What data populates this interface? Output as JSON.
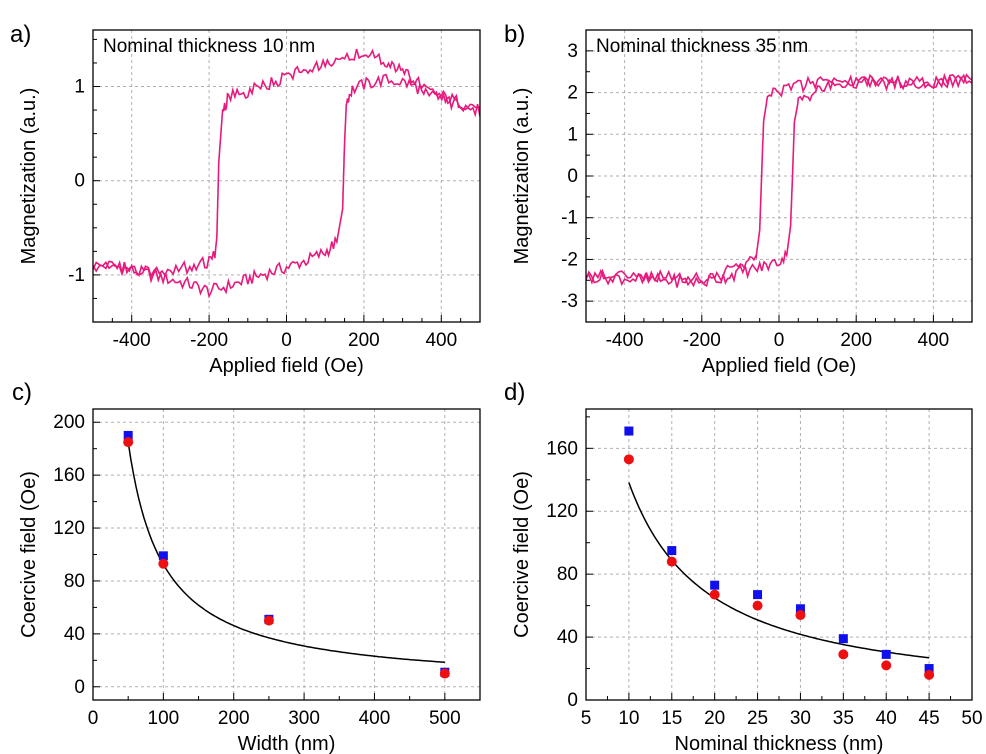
{
  "chart_data": [
    {
      "panel_label": "a)",
      "type": "line",
      "xlabel": "Applied field (Oe)",
      "ylabel": "Magnetization (a.u.)",
      "xlim": [
        -500,
        500
      ],
      "ylim": [
        -1.5,
        1.6
      ],
      "xticks": [
        -400,
        -200,
        0,
        200,
        400
      ],
      "yticks": [
        -1,
        0,
        1
      ],
      "grid": true,
      "annotation": "Nominal thickness 10 nm",
      "line_color": "#e8197c",
      "series": [
        {
          "name": "",
          "x": [
            500,
            420,
            350,
            300,
            250,
            200,
            150,
            100,
            50,
            0,
            -50,
            -100,
            -150,
            -165,
            -175,
            -180,
            -185,
            -200,
            -250,
            -300,
            -350,
            -400,
            -450,
            -500
          ],
          "y": [
            0.75,
            0.82,
            1.0,
            1.15,
            1.28,
            1.37,
            1.33,
            1.26,
            1.19,
            1.1,
            1.02,
            0.95,
            0.88,
            0.75,
            0.2,
            -0.6,
            -0.8,
            -0.85,
            -0.92,
            -0.95,
            -0.98,
            -0.95,
            -0.9,
            -0.9
          ]
        },
        {
          "name": "",
          "x": [
            -500,
            -450,
            -400,
            -350,
            -300,
            -250,
            -200,
            -150,
            -100,
            -50,
            0,
            50,
            100,
            130,
            145,
            150,
            155,
            170,
            200,
            250,
            300,
            350,
            400,
            450,
            500
          ],
          "y": [
            -0.9,
            -0.9,
            -0.95,
            -1.0,
            -1.05,
            -1.1,
            -1.17,
            -1.12,
            -1.05,
            -0.98,
            -0.92,
            -0.85,
            -0.76,
            -0.65,
            -0.3,
            0.4,
            0.85,
            0.97,
            1.02,
            1.07,
            1.05,
            0.97,
            0.9,
            0.83,
            0.78
          ]
        }
      ]
    },
    {
      "panel_label": "b)",
      "type": "line",
      "xlabel": "Applied field (Oe)",
      "ylabel": "Magnetization (a.u.)",
      "xlim": [
        -500,
        500
      ],
      "ylim": [
        -3.5,
        3.5
      ],
      "xticks": [
        -400,
        -200,
        0,
        200,
        400
      ],
      "yticks": [
        -3,
        -2,
        -1,
        0,
        1,
        2,
        3
      ],
      "grid": true,
      "annotation": "Nominal thickness 35 nm",
      "line_color": "#e8197c",
      "series": [
        {
          "name": "",
          "x": [
            500,
            400,
            300,
            200,
            150,
            100,
            50,
            0,
            -30,
            -40,
            -45,
            -50,
            -60,
            -100,
            -150,
            -200,
            -250,
            -300,
            -400,
            -500
          ],
          "y": [
            2.3,
            2.25,
            2.25,
            2.3,
            2.32,
            2.25,
            2.15,
            2.05,
            1.9,
            1.3,
            0.0,
            -1.3,
            -2.0,
            -2.2,
            -2.35,
            -2.5,
            -2.45,
            -2.4,
            -2.4,
            -2.4
          ]
        },
        {
          "name": "",
          "x": [
            -500,
            -400,
            -300,
            -200,
            -150,
            -100,
            -50,
            0,
            20,
            30,
            35,
            40,
            50,
            100,
            150,
            200,
            300,
            400,
            500
          ],
          "y": [
            -2.4,
            -2.45,
            -2.5,
            -2.55,
            -2.45,
            -2.3,
            -2.2,
            -2.05,
            -1.9,
            -1.2,
            0.0,
            1.3,
            1.8,
            2.05,
            2.2,
            2.25,
            2.2,
            2.25,
            2.3
          ]
        }
      ]
    },
    {
      "panel_label": "c)",
      "type": "scatter",
      "xlabel": "Width (nm)",
      "ylabel": "Coercive field (Oe)",
      "xlim": [
        0,
        550
      ],
      "ylim": [
        -10,
        210
      ],
      "xticks": [
        0,
        100,
        200,
        300,
        400,
        500
      ],
      "yticks": [
        0,
        40,
        80,
        120,
        160,
        200
      ],
      "grid": true,
      "series": [
        {
          "name": "",
          "marker": "square",
          "color": "#1010ee",
          "x": [
            50,
            100,
            250,
            500
          ],
          "y": [
            190,
            99,
            51,
            11
          ]
        },
        {
          "name": "",
          "marker": "circle",
          "color": "#ee1010",
          "x": [
            50,
            100,
            250,
            500
          ],
          "y": [
            185,
            93,
            50,
            10
          ]
        }
      ],
      "fit": {
        "type": "power",
        "a": 9250,
        "b": 1.0,
        "x_from": 50,
        "x_to": 500,
        "color": "#000000"
      }
    },
    {
      "panel_label": "d)",
      "type": "scatter",
      "xlabel": "Nominal thickness (nm)",
      "ylabel": "Coercive field (Oe)",
      "xlim": [
        5,
        50
      ],
      "ylim": [
        0,
        185
      ],
      "xticks": [
        5,
        10,
        15,
        20,
        25,
        30,
        35,
        40,
        45,
        50
      ],
      "yticks": [
        0,
        40,
        80,
        120,
        160
      ],
      "grid": true,
      "series": [
        {
          "name": "",
          "marker": "square",
          "color": "#1010ee",
          "x": [
            10,
            15,
            20,
            25,
            30,
            35,
            40,
            45
          ],
          "y": [
            171,
            95,
            73,
            67,
            58,
            39,
            29,
            20
          ]
        },
        {
          "name": "",
          "marker": "circle",
          "color": "#ee1010",
          "x": [
            10,
            15,
            20,
            25,
            30,
            35,
            40,
            45
          ],
          "y": [
            153,
            88,
            67,
            60,
            54,
            29,
            22,
            16
          ]
        }
      ],
      "fit": {
        "type": "power",
        "a": 1700,
        "b": 1.09,
        "x_from": 10,
        "x_to": 45,
        "color": "#000000"
      }
    }
  ]
}
